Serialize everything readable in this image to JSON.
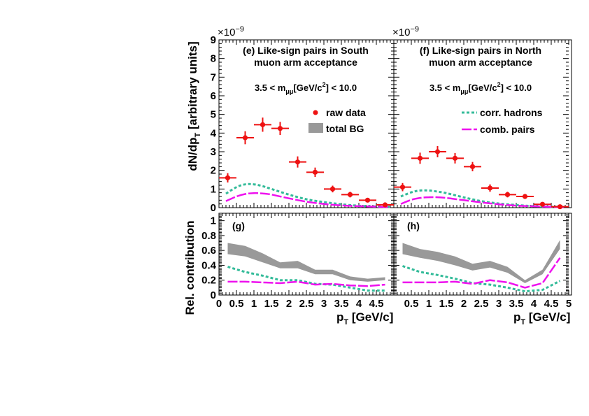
{
  "figure": {
    "top_ylabel": "dN/dp",
    "top_ylabel_sub": "T",
    "top_ylabel_rest": " [arbitrary units]",
    "bottom_ylabel": "Rel. contribution",
    "xlabel_main": "p",
    "xlabel_sub": "T",
    "xlabel_rest": " [GeV/c]",
    "exponent_base": "×10",
    "exponent_power": "−9"
  },
  "legend": {
    "raw_data": "raw data",
    "total_bg": "total BG",
    "corr_hadrons": "corr. hadrons",
    "comb_pairs": "comb. pairs"
  },
  "colors": {
    "raw_data": "#ee1111",
    "total_bg": "#999999",
    "corr_hadrons": "#33bb99",
    "comb_pairs": "#ee11ee"
  },
  "chart_data": [
    {
      "type": "scatter",
      "panel": "e",
      "title_line1": "(e) Like-sign pairs in South",
      "title_line2": "muon arm acceptance",
      "cut_text": "3.5 < m",
      "cut_sub": "μμ",
      "cut_rest": "[GeV/c",
      "cut_sup": "2",
      "cut_end": "] < 10.0",
      "ylim": [
        0,
        9
      ],
      "y_scale": "×1e-9",
      "yticks": [
        0,
        1,
        2,
        3,
        4,
        5,
        6,
        7,
        8,
        9
      ],
      "xlim": [
        0,
        5
      ],
      "raw_data": {
        "x": [
          0.25,
          0.75,
          1.25,
          1.75,
          2.25,
          2.75,
          3.25,
          3.75,
          4.25,
          4.75
        ],
        "y": [
          1.6,
          3.75,
          4.45,
          4.25,
          2.45,
          1.9,
          1.0,
          0.7,
          0.4,
          0.15
        ],
        "yerr": [
          0.25,
          0.35,
          0.38,
          0.35,
          0.3,
          0.25,
          0.18,
          0.15,
          0.1,
          0.08
        ]
      },
      "corr_hadrons": {
        "x": [
          0.2,
          0.5,
          0.75,
          1.0,
          1.25,
          1.5,
          2.0,
          2.5,
          3.0,
          3.5,
          4.0,
          4.5,
          4.9
        ],
        "y": [
          0.75,
          1.1,
          1.25,
          1.25,
          1.15,
          1.0,
          0.7,
          0.45,
          0.3,
          0.18,
          0.1,
          0.06,
          0.04
        ]
      },
      "comb_pairs": {
        "x": [
          0.2,
          0.5,
          0.75,
          1.0,
          1.25,
          1.5,
          2.0,
          2.5,
          3.0,
          3.5,
          4.0,
          4.5,
          4.9
        ],
        "y": [
          0.35,
          0.6,
          0.73,
          0.78,
          0.76,
          0.7,
          0.5,
          0.32,
          0.2,
          0.12,
          0.08,
          0.05,
          0.03
        ]
      }
    },
    {
      "type": "scatter",
      "panel": "f",
      "title_line1": "(f) Like-sign pairs in North",
      "title_line2": "muon arm acceptance",
      "cut_text": "3.5 < m",
      "cut_sub": "μμ",
      "cut_rest": "[GeV/c",
      "cut_sup": "2",
      "cut_end": "] < 10.0",
      "ylim": [
        0,
        9
      ],
      "y_scale": "×1e-9",
      "xlim": [
        0,
        5
      ],
      "raw_data": {
        "x": [
          0.25,
          0.75,
          1.25,
          1.75,
          2.25,
          2.75,
          3.25,
          3.75,
          4.25,
          4.75
        ],
        "y": [
          1.1,
          2.65,
          3.0,
          2.65,
          2.2,
          1.05,
          0.7,
          0.6,
          0.18,
          0.05
        ],
        "yerr": [
          0.22,
          0.3,
          0.3,
          0.28,
          0.25,
          0.2,
          0.15,
          0.13,
          0.08,
          0.05
        ]
      },
      "corr_hadrons": {
        "x": [
          0.2,
          0.5,
          0.75,
          1.0,
          1.25,
          1.5,
          2.0,
          2.5,
          3.0,
          3.5,
          4.0,
          4.5,
          4.9
        ],
        "y": [
          0.6,
          0.82,
          0.92,
          0.92,
          0.86,
          0.78,
          0.55,
          0.35,
          0.22,
          0.14,
          0.08,
          0.05,
          0.03
        ]
      },
      "comb_pairs": {
        "x": [
          0.2,
          0.5,
          0.75,
          1.0,
          1.25,
          1.5,
          2.0,
          2.5,
          3.0,
          3.5,
          4.0,
          4.5,
          4.9
        ],
        "y": [
          0.2,
          0.42,
          0.52,
          0.56,
          0.56,
          0.52,
          0.4,
          0.28,
          0.18,
          0.11,
          0.07,
          0.04,
          0.02
        ]
      }
    },
    {
      "type": "area",
      "panel": "g",
      "title_line1": "(g)",
      "ylim": [
        0,
        1.1
      ],
      "yticks": [
        0,
        0.2,
        0.4,
        0.6,
        0.8,
        1
      ],
      "xlim": [
        0,
        5
      ],
      "xticks": [
        0,
        0.5,
        1,
        1.5,
        2,
        2.5,
        3,
        3.5,
        4,
        4.5
      ],
      "total_bg": {
        "x": [
          0.25,
          0.75,
          1.25,
          1.75,
          2.25,
          2.75,
          3.25,
          3.75,
          4.25,
          4.75
        ],
        "low": [
          0.55,
          0.52,
          0.44,
          0.36,
          0.36,
          0.28,
          0.28,
          0.2,
          0.18,
          0.2
        ],
        "high": [
          0.7,
          0.66,
          0.56,
          0.44,
          0.46,
          0.34,
          0.34,
          0.25,
          0.22,
          0.24
        ]
      },
      "corr_hadrons": {
        "x": [
          0.25,
          0.75,
          1.25,
          1.75,
          2.25,
          2.75,
          3.25,
          3.75,
          4.25,
          4.75
        ],
        "y": [
          0.38,
          0.31,
          0.26,
          0.2,
          0.2,
          0.15,
          0.14,
          0.1,
          0.06,
          0.06
        ]
      },
      "comb_pairs": {
        "x": [
          0.25,
          0.75,
          1.25,
          1.75,
          2.25,
          2.75,
          3.25,
          3.75,
          4.25,
          4.75
        ],
        "y": [
          0.18,
          0.18,
          0.17,
          0.16,
          0.18,
          0.14,
          0.15,
          0.13,
          0.12,
          0.14
        ]
      }
    },
    {
      "type": "area",
      "panel": "h",
      "title_line1": "(h)",
      "ylim": [
        0,
        1.1
      ],
      "xlim": [
        0,
        5
      ],
      "xticks": [
        0.5,
        1,
        1.5,
        2,
        2.5,
        3,
        3.5,
        4,
        4.5,
        5
      ],
      "total_bg": {
        "x": [
          0.25,
          0.75,
          1.25,
          1.75,
          2.25,
          2.75,
          3.25,
          3.75,
          4.25,
          4.75
        ],
        "low": [
          0.55,
          0.5,
          0.46,
          0.4,
          0.33,
          0.37,
          0.3,
          0.16,
          0.28,
          0.62
        ],
        "high": [
          0.7,
          0.62,
          0.58,
          0.52,
          0.42,
          0.46,
          0.38,
          0.2,
          0.34,
          0.74
        ]
      },
      "corr_hadrons": {
        "x": [
          0.25,
          0.75,
          1.25,
          1.75,
          2.25,
          2.75,
          3.25,
          3.75,
          4.25,
          4.75
        ],
        "y": [
          0.39,
          0.31,
          0.27,
          0.22,
          0.16,
          0.14,
          0.1,
          0.05,
          0.07,
          0.19
        ]
      },
      "comb_pairs": {
        "x": [
          0.25,
          0.75,
          1.25,
          1.75,
          2.25,
          2.75,
          3.25,
          3.75,
          4.25,
          4.75
        ],
        "y": [
          0.17,
          0.17,
          0.17,
          0.18,
          0.15,
          0.2,
          0.17,
          0.1,
          0.16,
          0.5
        ]
      }
    }
  ]
}
